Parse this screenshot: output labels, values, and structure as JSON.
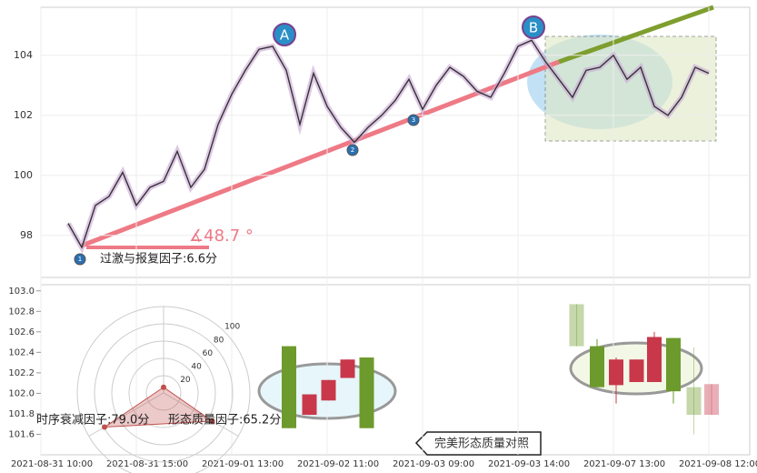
{
  "chart_data": [
    {
      "type": "line",
      "categories": [
        "2021-08-31 10:00",
        null,
        null,
        null,
        null,
        null,
        null,
        "2021-08-31 15:00",
        null,
        null,
        null,
        null,
        null,
        null,
        "2021-09-01 13:00",
        null,
        null,
        null,
        null,
        null,
        null,
        "2021-09-02 11:00",
        null,
        null,
        null,
        null,
        null,
        null,
        "2021-09-03 09:00",
        null,
        null,
        null,
        null,
        null,
        null,
        "2021-09-03 14:00",
        null,
        null,
        null,
        null,
        null,
        null,
        "2021-09-07 13:00",
        null,
        null,
        null,
        null,
        null,
        null,
        "2021-09-08 12:00",
        null,
        null,
        null
      ],
      "values": [
        null,
        null,
        98.4,
        97.6,
        99.0,
        99.3,
        100.1,
        99.0,
        99.6,
        99.8,
        100.8,
        99.6,
        100.2,
        101.7,
        102.7,
        103.5,
        104.2,
        104.3,
        103.5,
        101.7,
        103.4,
        102.3,
        101.6,
        101.1,
        101.6,
        102.0,
        102.5,
        103.2,
        102.2,
        103.0,
        103.6,
        103.3,
        102.8,
        102.6,
        103.4,
        104.3,
        104.5,
        103.8,
        103.2,
        102.6,
        103.5,
        103.6,
        104.0,
        103.2,
        103.6,
        102.3,
        102.0,
        102.6,
        103.6,
        103.4,
        null,
        null,
        null
      ],
      "color": "#333333",
      "ylim": [
        96.6,
        105.6
      ],
      "yticks": [
        98,
        100,
        102,
        104
      ],
      "wave_labels": [
        "A",
        "B",
        "1",
        "2",
        "3"
      ],
      "angle_label": "∡48.7 °"
    },
    {
      "type": "candlestick",
      "x": [
        18.2,
        19.7,
        21.1,
        22.5,
        23.9,
        39.3,
        40.8,
        42.2,
        43.7,
        45,
        46.4,
        47.9,
        49.2
      ],
      "open": [
        102.46,
        101.79,
        101.93,
        102.15,
        102.35,
        102.87,
        102.46,
        102.08,
        102.11,
        102.11,
        102.54,
        102.06,
        101.79
      ],
      "high": [
        102.46,
        101.99,
        102.13,
        102.33,
        102.35,
        102.87,
        102.53,
        102.35,
        102.33,
        102.6,
        102.54,
        102.45,
        102.09
      ],
      "low": [
        101.66,
        101.79,
        101.93,
        102.15,
        101.66,
        102.46,
        102.06,
        101.9,
        102.11,
        102.11,
        101.9,
        101.6,
        101.79
      ],
      "close": [
        101.66,
        101.99,
        102.13,
        102.33,
        101.66,
        102.46,
        102.06,
        102.33,
        102.33,
        102.55,
        102.02,
        101.79,
        102.09
      ],
      "xlim": [
        0,
        52
      ],
      "ylim": [
        101.4,
        103.06
      ],
      "yticks": [
        101.6,
        101.8,
        {
          "value": 102,
          "label": "102.0"
        },
        102.2,
        102.4,
        102.6,
        102.8,
        {
          "value": 103,
          "label": "103.0"
        }
      ],
      "up_color": "#c8384a",
      "down_color": "#6d9a2c"
    },
    {
      "type": "radar",
      "values": [
        6.6,
        79.0,
        65.2
      ],
      "value_labels": [
        "过激与报复因子:6.6分",
        "时序衰减因子:79.0分",
        "形态质量因子:65.2分"
      ],
      "rlim": [
        0,
        100
      ],
      "rticks": [
        20,
        40,
        60,
        80,
        100
      ],
      "color": "#c0504d"
    }
  ],
  "annotation": "完美形态质量对照"
}
